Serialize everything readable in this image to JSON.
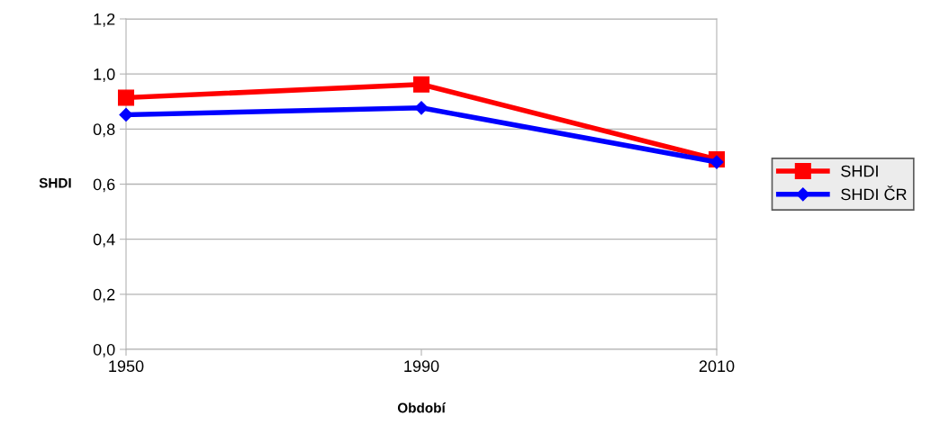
{
  "chart_data": {
    "type": "line",
    "xlabel": "Období",
    "ylabel": "SHDI",
    "categories": [
      "1950",
      "1990",
      "2010"
    ],
    "series": [
      {
        "name": "SHDI",
        "color": "#ff0000",
        "values": [
          0.914,
          0.962,
          0.69
        ],
        "marker": "square"
      },
      {
        "name": "SHDI ČR",
        "color": "#0000ff",
        "values": [
          0.852,
          0.877,
          0.68
        ],
        "marker": "diamond"
      }
    ],
    "ylim": [
      0,
      1.2
    ],
    "yticks": [
      {
        "value": 0,
        "label": "0,0"
      },
      {
        "value": 0.2,
        "label": "0,2"
      },
      {
        "value": 0.4,
        "label": "0,4"
      },
      {
        "value": 0.6,
        "label": "0,6"
      },
      {
        "value": 0.8,
        "label": "0,8"
      },
      {
        "value": 1.0,
        "label": "1,0"
      },
      {
        "value": 1.2,
        "label": "1,2"
      }
    ],
    "grid": "y",
    "legend": "right",
    "line_style": "solid"
  }
}
